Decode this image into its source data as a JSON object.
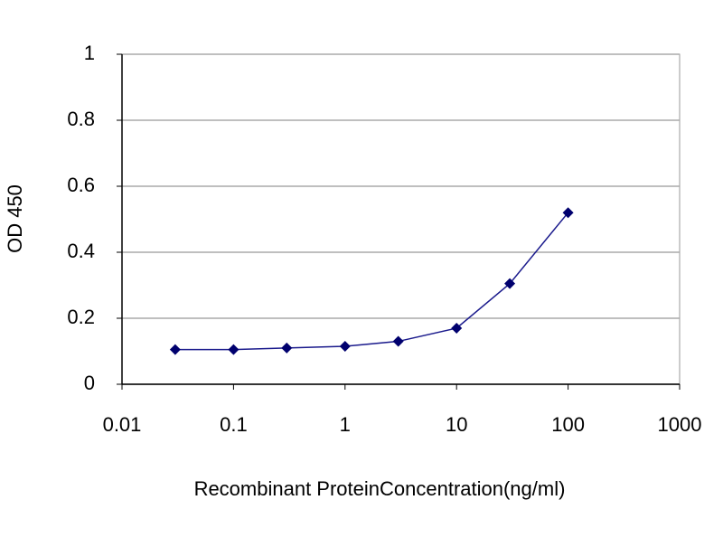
{
  "chart_data": {
    "type": "line",
    "x_label": "Recombinant ProteinConcentration(ng/ml)",
    "y_label": "OD 450",
    "x": [
      0.03,
      0.1,
      0.3,
      1,
      3,
      10,
      30,
      100
    ],
    "values": [
      0.105,
      0.105,
      0.11,
      0.115,
      0.13,
      0.17,
      0.305,
      0.52
    ],
    "color": "#1a1a8c",
    "marker_color": "#00006e",
    "xscale": "log",
    "xlim": [
      0.01,
      1000
    ],
    "xticks": [
      0.01,
      0.1,
      1,
      10,
      100,
      1000
    ],
    "ylim": [
      0,
      1
    ],
    "yticks": [
      0,
      0.2,
      0.4,
      0.6,
      0.8,
      1
    ],
    "grid": true
  }
}
